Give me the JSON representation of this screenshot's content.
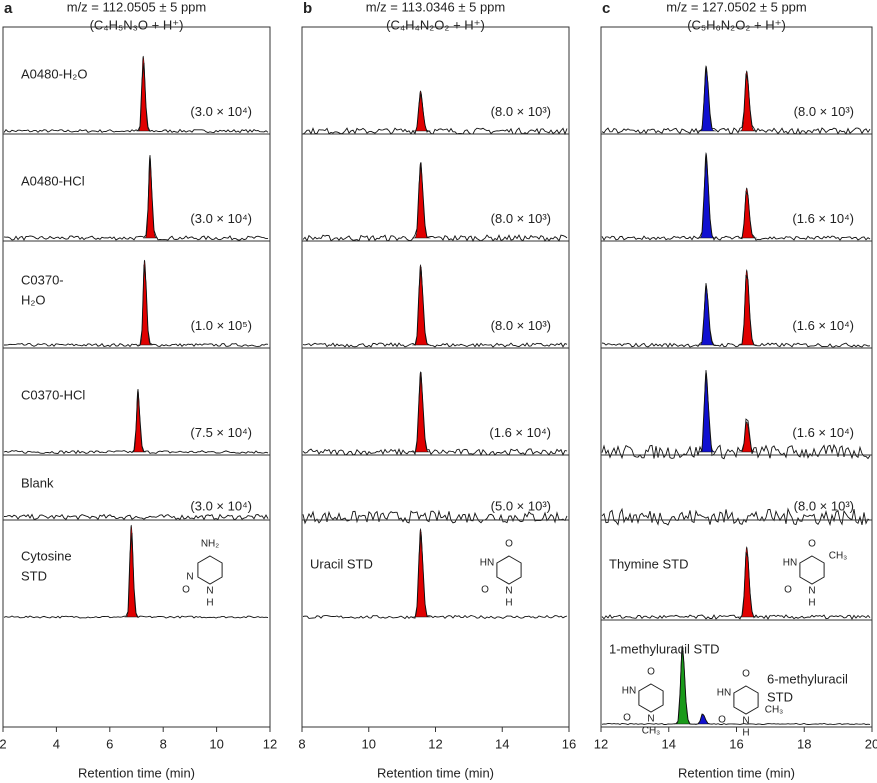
{
  "chart_data": [
    {
      "type": "chromatogram",
      "panel": "a",
      "title": "m/z = 112.0505 ± 5 ppm",
      "subtitle": "(C₄H₅N₃O + H⁺)",
      "xlabel": "Retention time (min)",
      "xlim": [
        2,
        12
      ],
      "xticks": [
        2,
        4,
        6,
        8,
        10,
        12
      ],
      "traces": [
        {
          "label": [
            "A0480-H₂O"
          ],
          "scale": "(3.0 × 10⁴)",
          "peaks": [
            {
              "rt": 7.25,
              "height": 75,
              "color": "#e00000"
            }
          ]
        },
        {
          "label": [
            "A0480-HCl"
          ],
          "scale": "(3.0 × 10⁴)",
          "peaks": [
            {
              "rt": 7.5,
              "height": 82,
              "color": "#e00000"
            }
          ]
        },
        {
          "label": [
            "C0370-",
            "H₂O"
          ],
          "scale": "(1.0 × 10⁵)",
          "peaks": [
            {
              "rt": 7.3,
              "height": 85,
              "color": "#e00000"
            }
          ]
        },
        {
          "label": [
            "C0370-HCl"
          ],
          "scale": "(7.5 × 10⁴)",
          "peaks": [
            {
              "rt": 7.05,
              "height": 62,
              "color": "#e00000"
            }
          ]
        },
        {
          "label": [
            "Blank"
          ],
          "scale": "(3.0 × 10⁴)",
          "peaks": []
        },
        {
          "label": [
            "Cytosine",
            "STD"
          ],
          "peaks": [
            {
              "rt": 6.8,
              "height": 92,
              "color": "#e00000"
            }
          ],
          "structure": [
            "NH₂",
            "N",
            "O",
            "N",
            "H"
          ]
        }
      ]
    },
    {
      "type": "chromatogram",
      "panel": "b",
      "title": "m/z = 113.0346 ± 5 ppm",
      "subtitle": "(C₄H₄N₂O₂ + H⁺)",
      "xlabel": "Retention time (min)",
      "xlim": [
        8,
        16
      ],
      "xticks": [
        8,
        10,
        12,
        14,
        16
      ],
      "traces": [
        {
          "label": [],
          "scale": "(8.0 × 10³)",
          "peaks": [
            {
              "rt": 11.55,
              "height": 40,
              "color": "#e00000"
            }
          ]
        },
        {
          "label": [],
          "scale": "(8.0 × 10³)",
          "peaks": [
            {
              "rt": 11.55,
              "height": 75,
              "color": "#e00000"
            }
          ]
        },
        {
          "label": [],
          "scale": "(8.0 × 10³)",
          "peaks": [
            {
              "rt": 11.55,
              "height": 80,
              "color": "#e00000"
            }
          ]
        },
        {
          "label": [],
          "scale": "(1.6 × 10⁴)",
          "peaks": [
            {
              "rt": 11.55,
              "height": 80,
              "color": "#e00000"
            }
          ]
        },
        {
          "label": [],
          "scale": "(5.0 × 10³)",
          "peaks": []
        },
        {
          "label": [
            "Uracil STD"
          ],
          "peaks": [
            {
              "rt": 11.55,
              "height": 88,
              "color": "#e00000"
            }
          ],
          "structure": [
            "O",
            "HN",
            "O",
            "N",
            "H"
          ]
        }
      ]
    },
    {
      "type": "chromatogram",
      "panel": "c",
      "title": "m/z = 127.0502 ± 5 ppm",
      "subtitle": "(C₅H₆N₂O₂ + H⁺)",
      "xlabel": "Retention time (min)",
      "xlim": [
        12,
        20
      ],
      "xticks": [
        12,
        14,
        16,
        18,
        20
      ],
      "traces": [
        {
          "label": [],
          "scale": "(8.0 × 10³)",
          "peaks": [
            {
              "rt": 15.1,
              "height": 65,
              "color": "#1010d0"
            },
            {
              "rt": 16.3,
              "height": 60,
              "color": "#e00000"
            }
          ]
        },
        {
          "label": [],
          "scale": "(1.6 × 10⁴)",
          "peaks": [
            {
              "rt": 15.1,
              "height": 85,
              "color": "#1010d0"
            },
            {
              "rt": 16.3,
              "height": 50,
              "color": "#e00000"
            }
          ]
        },
        {
          "label": [],
          "scale": "(1.6 × 10⁴)",
          "peaks": [
            {
              "rt": 15.1,
              "height": 60,
              "color": "#1010d0"
            },
            {
              "rt": 16.3,
              "height": 75,
              "color": "#e00000"
            }
          ]
        },
        {
          "label": [],
          "scale": "(1.6 × 10⁴)",
          "peaks": [
            {
              "rt": 15.1,
              "height": 80,
              "color": "#1010d0"
            },
            {
              "rt": 16.3,
              "height": 30,
              "color": "#e00000"
            }
          ]
        },
        {
          "label": [],
          "scale": "(8.0 × 10³)",
          "peaks": []
        },
        {
          "label": [
            "Thymine STD"
          ],
          "peaks": [
            {
              "rt": 16.3,
              "height": 70,
              "color": "#e00000"
            }
          ],
          "structure": [
            "O",
            "CH₃",
            "HN",
            "O",
            "N",
            "H"
          ]
        },
        {
          "label": [
            "1-methyluracil STD"
          ],
          "label2": [
            "6-methyluracil",
            "STD"
          ],
          "peaks": [
            {
              "rt": 14.4,
              "height": 78,
              "color": "#1a9a1a"
            },
            {
              "rt": 15.0,
              "height": 10,
              "color": "#1010d0"
            }
          ],
          "structure": [
            "O",
            "HN",
            "O",
            "N",
            "CH₃"
          ],
          "structure2": [
            "O",
            "HN",
            "O",
            "N",
            "H",
            "CH₃"
          ]
        }
      ]
    }
  ]
}
